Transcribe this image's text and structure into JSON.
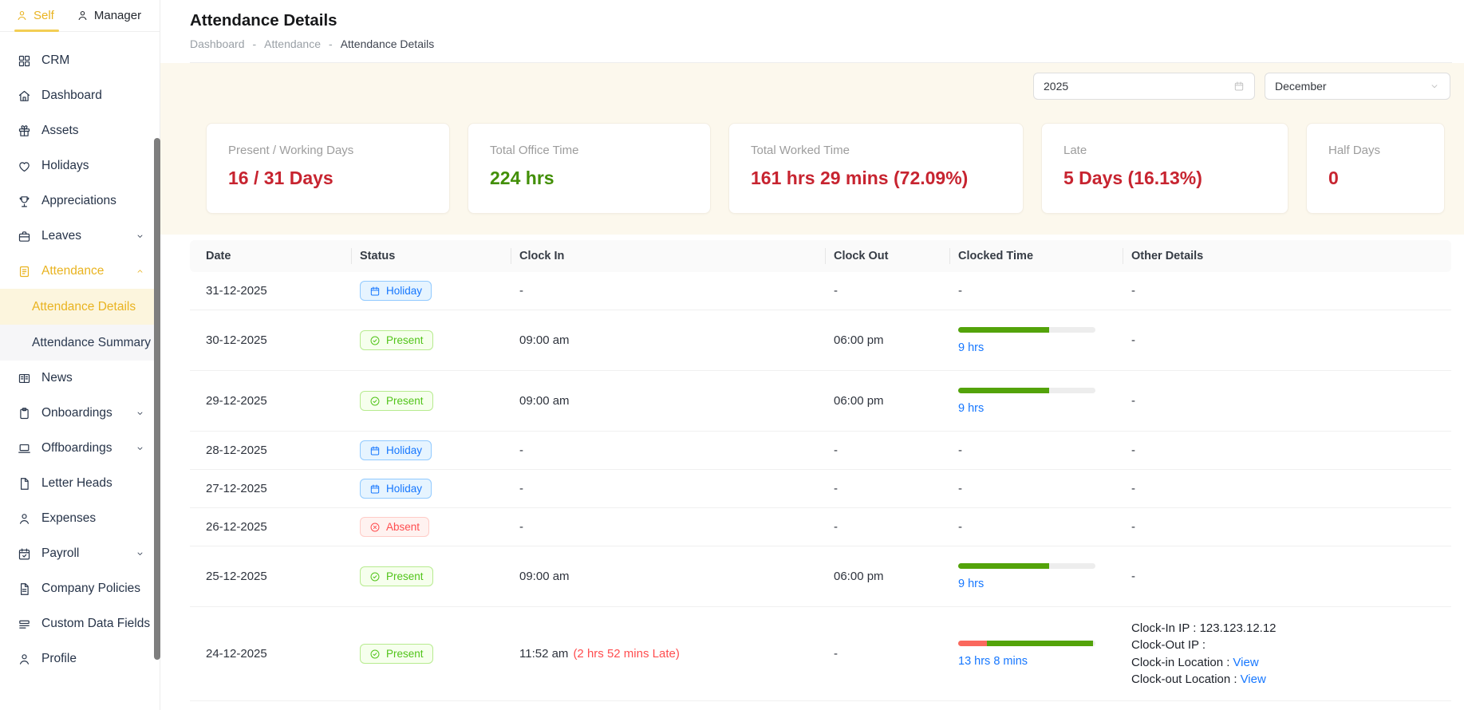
{
  "tabs": {
    "self": {
      "label": "Self"
    },
    "manager": {
      "label": "Manager"
    }
  },
  "sidebar": {
    "items": [
      {
        "label": "CRM",
        "icon": "grid-icon"
      },
      {
        "label": "Dashboard",
        "icon": "home-icon"
      },
      {
        "label": "Assets",
        "icon": "gift-icon"
      },
      {
        "label": "Holidays",
        "icon": "heart-icon"
      },
      {
        "label": "Appreciations",
        "icon": "trophy-icon"
      },
      {
        "label": "Leaves",
        "icon": "briefcase-icon",
        "chevron": "down"
      },
      {
        "label": "Attendance",
        "icon": "clipboard-list-icon",
        "chevron": "up",
        "active": true
      },
      {
        "label": "Attendance Details",
        "sub": true,
        "active": true
      },
      {
        "label": "Attendance Summary",
        "sub": true
      },
      {
        "label": "News",
        "icon": "newspaper-icon"
      },
      {
        "label": "Onboardings",
        "icon": "clipboard-icon",
        "chevron": "down"
      },
      {
        "label": "Offboardings",
        "icon": "laptop-icon",
        "chevron": "down"
      },
      {
        "label": "Letter Heads",
        "icon": "file-icon"
      },
      {
        "label": "Expenses",
        "icon": "user-icon"
      },
      {
        "label": "Payroll",
        "icon": "calendar-check-icon",
        "chevron": "down"
      },
      {
        "label": "Company Policies",
        "icon": "file-text-icon"
      },
      {
        "label": "Custom Data Fields",
        "icon": "rows-icon"
      },
      {
        "label": "Profile",
        "icon": "user-icon"
      }
    ]
  },
  "header": {
    "title": "Attendance Details",
    "breadcrumb": [
      "Dashboard",
      "Attendance",
      "Attendance Details"
    ],
    "separator": "-"
  },
  "filters": {
    "year": "2025",
    "month": "December"
  },
  "summary_cards": [
    {
      "label": "Present / Working Days",
      "value": "16 / 31 Days",
      "color": "#c72430"
    },
    {
      "label": "Total Office Time",
      "value": "224 hrs",
      "color": "#428f06"
    },
    {
      "label": "Total Worked Time",
      "value": "161 hrs 29 mins (72.09%)",
      "color": "#c72430"
    },
    {
      "label": "Late",
      "value": "5 Days (16.13%)",
      "color": "#c72430"
    },
    {
      "label": "Half Days",
      "value": "0",
      "color": "#c72430"
    }
  ],
  "table": {
    "columns": [
      "Date",
      "Status",
      "Clock In",
      "Clock Out",
      "Clocked Time",
      "Other Details"
    ],
    "rows": [
      {
        "date": "31-12-2025",
        "status": {
          "label": "Holiday",
          "type": "holiday"
        },
        "clock_in": "-",
        "clock_out": "-",
        "other": "-"
      },
      {
        "date": "30-12-2025",
        "status": {
          "label": "Present",
          "type": "present"
        },
        "clock_in": "09:00 am",
        "clock_out": "06:00 pm",
        "clocked": {
          "label": "9 hrs",
          "bar": [
            {
              "color": "#53a30a",
              "pct": 66
            }
          ]
        },
        "other": "-"
      },
      {
        "date": "29-12-2025",
        "status": {
          "label": "Present",
          "type": "present"
        },
        "clock_in": "09:00 am",
        "clock_out": "06:00 pm",
        "clocked": {
          "label": "9 hrs",
          "bar": [
            {
              "color": "#53a30a",
              "pct": 66
            }
          ]
        },
        "other": "-"
      },
      {
        "date": "28-12-2025",
        "status": {
          "label": "Holiday",
          "type": "holiday"
        },
        "clock_in": "-",
        "clock_out": "-",
        "other": "-"
      },
      {
        "date": "27-12-2025",
        "status": {
          "label": "Holiday",
          "type": "holiday"
        },
        "clock_in": "-",
        "clock_out": "-",
        "other": "-"
      },
      {
        "date": "26-12-2025",
        "status": {
          "label": "Absent",
          "type": "absent"
        },
        "clock_in": "-",
        "clock_out": "-",
        "other": "-"
      },
      {
        "date": "25-12-2025",
        "status": {
          "label": "Present",
          "type": "present"
        },
        "clock_in": "09:00 am",
        "clock_out": "06:00 pm",
        "clocked": {
          "label": "9 hrs",
          "bar": [
            {
              "color": "#53a30a",
              "pct": 66
            }
          ]
        },
        "other": "-"
      },
      {
        "date": "24-12-2025",
        "status": {
          "label": "Present",
          "type": "present"
        },
        "clock_in": "11:52 am",
        "late_note": "(2 hrs 52 mins Late)",
        "clock_out": "-",
        "clocked": {
          "label": "13 hrs 8 mins",
          "bar": [
            {
              "color": "#fa685d",
              "pct": 21
            },
            {
              "color": "#53a30a",
              "pct": 77
            }
          ]
        },
        "other_details": [
          {
            "label": "Clock-In IP :",
            "value": "123.123.12.12"
          },
          {
            "label": "Clock-Out IP :",
            "value": ""
          },
          {
            "label": "Clock-in Location :",
            "link": "View"
          },
          {
            "label": "Clock-out Location :",
            "link": "View"
          }
        ]
      }
    ]
  },
  "colors": {
    "accent_gold": "#e9b320",
    "value_red": "#c72430",
    "value_green": "#428f06",
    "bar_green": "#53a30a",
    "bar_red": "#fa685d",
    "link_blue": "#1677ff",
    "late_red": "#ff4d4f",
    "badge_holiday": "#1677ff",
    "badge_present": "#52c41a",
    "badge_absent": "#ff4d4f"
  }
}
